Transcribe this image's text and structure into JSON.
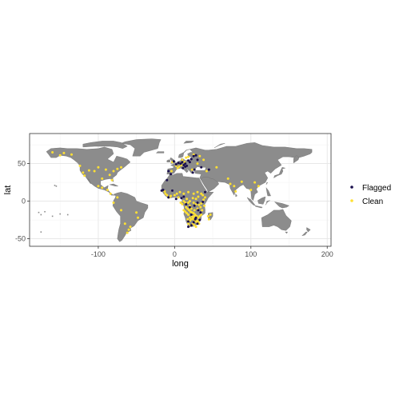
{
  "chart_data": {
    "type": "scatter",
    "title": "",
    "xlabel": "long",
    "ylabel": "lat",
    "xlim": [
      -190,
      205
    ],
    "ylim": [
      -60,
      90
    ],
    "x_ticks": [
      -100,
      0,
      100,
      200
    ],
    "y_ticks": [
      -50,
      0,
      50
    ],
    "x_tick_labels": [
      "-100",
      "0",
      "100",
      "200"
    ],
    "y_tick_labels": [
      "-50",
      "0",
      "50"
    ],
    "grid": true,
    "legend_position": "right",
    "background": "basemap: world land polygons (grey)",
    "colors": {
      "land": "#8c8c8c",
      "land_border": "#6f6f6f",
      "grid_major": "#e5e5e5",
      "grid_minor": "#f2f2f2",
      "frame": "#333333",
      "flagged": "#1a0f4d",
      "clean": "#ffe033"
    },
    "series": [
      {
        "name": "Flagged",
        "color": "#1a0f4d",
        "points": [
          [
            -1,
            53
          ],
          [
            2,
            49
          ],
          [
            5,
            51
          ],
          [
            8,
            50
          ],
          [
            10,
            52
          ],
          [
            12,
            48
          ],
          [
            14,
            50
          ],
          [
            16,
            47
          ],
          [
            18,
            54
          ],
          [
            20,
            52
          ],
          [
            22,
            56
          ],
          [
            25,
            60
          ],
          [
            28,
            61
          ],
          [
            30,
            55
          ],
          [
            14,
            46
          ],
          [
            11,
            44
          ],
          [
            24,
            38
          ],
          [
            26,
            42
          ],
          [
            35,
            45
          ],
          [
            45,
            42
          ],
          [
            -8,
            40
          ],
          [
            -5,
            36
          ],
          [
            -3,
            14
          ],
          [
            2,
            3
          ],
          [
            -8,
            5
          ],
          [
            15,
            -4
          ],
          [
            20,
            -8
          ],
          [
            26,
            -6
          ],
          [
            30,
            -2
          ],
          [
            37,
            -1
          ],
          [
            40,
            12
          ],
          [
            34,
            -15
          ],
          [
            28,
            -22
          ],
          [
            25,
            -28
          ],
          [
            30,
            -30
          ],
          [
            18,
            -34
          ],
          [
            22,
            -32
          ],
          [
            27,
            -24
          ],
          [
            33,
            -25
          ],
          [
            18,
            -27
          ],
          [
            22,
            -18
          ],
          [
            31,
            -12
          ],
          [
            -10,
            28
          ],
          [
            9,
            4
          ],
          [
            12,
            6
          ],
          [
            -15,
            15
          ],
          [
            -17,
            14
          ]
        ]
      },
      {
        "name": "Clean",
        "color": "#ffe033",
        "points": [
          [
            -160,
            65
          ],
          [
            -150,
            61
          ],
          [
            -145,
            64
          ],
          [
            -135,
            62
          ],
          [
            -124,
            47
          ],
          [
            -120,
            38
          ],
          [
            -118,
            34
          ],
          [
            -112,
            41
          ],
          [
            -105,
            40
          ],
          [
            -100,
            45
          ],
          [
            -95,
            30
          ],
          [
            -90,
            42
          ],
          [
            -85,
            35
          ],
          [
            -80,
            40
          ],
          [
            -75,
            43
          ],
          [
            -70,
            45
          ],
          [
            -82,
            28
          ],
          [
            -100,
            20
          ],
          [
            -95,
            18
          ],
          [
            -88,
            15
          ],
          [
            -84,
            10
          ],
          [
            -75,
            5
          ],
          [
            -80,
            -2
          ],
          [
            -70,
            -12
          ],
          [
            -65,
            -30
          ],
          [
            -58,
            -34
          ],
          [
            -60,
            -38
          ],
          [
            -50,
            -15
          ],
          [
            -48,
            -22
          ],
          [
            -62,
            -42
          ],
          [
            -3,
            52
          ],
          [
            2,
            47
          ],
          [
            6,
            46
          ],
          [
            10,
            55
          ],
          [
            15,
            58
          ],
          [
            18,
            59
          ],
          [
            25,
            62
          ],
          [
            13,
            52
          ],
          [
            9,
            48
          ],
          [
            -4,
            40
          ],
          [
            4,
            44
          ],
          [
            23,
            42
          ],
          [
            30,
            50
          ],
          [
            38,
            55
          ],
          [
            33,
            60
          ],
          [
            42,
            40
          ],
          [
            55,
            45
          ],
          [
            70,
            30
          ],
          [
            78,
            20
          ],
          [
            88,
            26
          ],
          [
            80,
            13
          ],
          [
            73,
            23
          ],
          [
            100,
            15
          ],
          [
            105,
            25
          ],
          [
            110,
            20
          ],
          [
            -12,
            10
          ],
          [
            -10,
            8
          ],
          [
            -5,
            7
          ],
          [
            0,
            8
          ],
          [
            3,
            10
          ],
          [
            7,
            12
          ],
          [
            12,
            10
          ],
          [
            18,
            12
          ],
          [
            25,
            10
          ],
          [
            30,
            12
          ],
          [
            35,
            10
          ],
          [
            -13,
            13
          ],
          [
            -7,
            5
          ],
          [
            5,
            5
          ],
          [
            8,
            -2
          ],
          [
            10,
            -4
          ],
          [
            12,
            0
          ],
          [
            15,
            -8
          ],
          [
            17,
            -10
          ],
          [
            19,
            -12
          ],
          [
            21,
            -14
          ],
          [
            23,
            -15
          ],
          [
            25,
            -16
          ],
          [
            27,
            -18
          ],
          [
            29,
            -20
          ],
          [
            31,
            -22
          ],
          [
            23,
            -20
          ],
          [
            20,
            -22
          ],
          [
            17,
            -24
          ],
          [
            25,
            -24
          ],
          [
            27,
            -26
          ],
          [
            29,
            -28
          ],
          [
            24,
            -30
          ],
          [
            21,
            -32
          ],
          [
            18,
            -30
          ],
          [
            26,
            -32
          ],
          [
            28,
            -34
          ],
          [
            31,
            -28
          ],
          [
            33,
            -20
          ],
          [
            35,
            -18
          ],
          [
            36,
            -12
          ],
          [
            39,
            -6
          ],
          [
            34,
            -8
          ],
          [
            30,
            -10
          ],
          [
            26,
            -12
          ],
          [
            22,
            -10
          ],
          [
            20,
            -6
          ],
          [
            18,
            -2
          ],
          [
            25,
            -2
          ],
          [
            28,
            -4
          ],
          [
            32,
            -5
          ],
          [
            35,
            -3
          ],
          [
            38,
            2
          ],
          [
            40,
            5
          ],
          [
            37,
            8
          ],
          [
            31,
            6
          ],
          [
            28,
            3
          ],
          [
            24,
            4
          ],
          [
            20,
            0
          ],
          [
            16,
            3
          ],
          [
            14,
            -2
          ],
          [
            16,
            -16
          ],
          [
            18,
            -18
          ],
          [
            20,
            -26
          ],
          [
            22,
            -24
          ],
          [
            24,
            -22
          ],
          [
            30,
            -26
          ],
          [
            32,
            -30
          ],
          [
            26,
            -20
          ],
          [
            12,
            -12
          ],
          [
            14,
            -14
          ],
          [
            44,
            -20
          ],
          [
            47,
            -18
          ],
          [
            45,
            -24
          ]
        ]
      }
    ]
  }
}
